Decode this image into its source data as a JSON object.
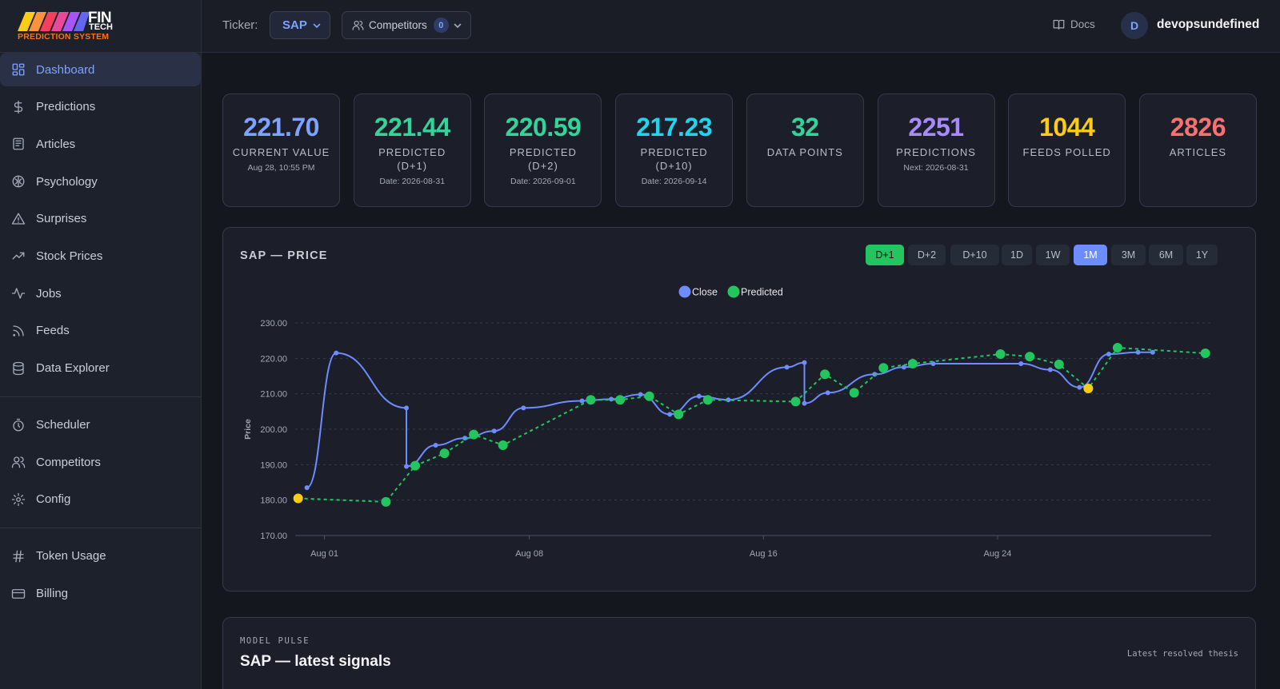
{
  "brand": {
    "line1": "FIN",
    "line2": "TECH",
    "subtitle": "PREDICTION SYSTEM"
  },
  "sidebar": {
    "groups": [
      [
        {
          "label": "Dashboard",
          "icon": "dashboard-icon",
          "active": true
        },
        {
          "label": "Predictions",
          "icon": "dollar-icon"
        },
        {
          "label": "Articles",
          "icon": "newspaper-icon"
        },
        {
          "label": "Psychology",
          "icon": "brain-icon"
        },
        {
          "label": "Surprises",
          "icon": "warning-icon"
        },
        {
          "label": "Stock Prices",
          "icon": "trending-up-icon"
        },
        {
          "label": "Jobs",
          "icon": "activity-icon"
        },
        {
          "label": "Feeds",
          "icon": "rss-icon"
        },
        {
          "label": "Data Explorer",
          "icon": "database-icon"
        }
      ],
      [
        {
          "label": "Scheduler",
          "icon": "timer-icon"
        },
        {
          "label": "Competitors",
          "icon": "users-icon"
        },
        {
          "label": "Config",
          "icon": "gear-icon"
        }
      ],
      [
        {
          "label": "Token Usage",
          "icon": "hash-icon"
        },
        {
          "label": "Billing",
          "icon": "credit-card-icon"
        }
      ]
    ]
  },
  "topbar": {
    "ticker_label": "Ticker:",
    "ticker_value": "SAP",
    "competitors_label": "Competitors",
    "competitors_count": "0",
    "docs_label": "Docs",
    "avatar_initial": "D",
    "username": "devopsundefined"
  },
  "stats": [
    {
      "value": "221.70",
      "label": "CURRENT VALUE",
      "sub": "Aug 28, 10:55 PM",
      "color": "#7da2ff"
    },
    {
      "value": "221.44",
      "label": "PREDICTED (D+1)",
      "sub": "Date: 2026-08-31",
      "color": "#34d399"
    },
    {
      "value": "220.59",
      "label": "PREDICTED (D+2)",
      "sub": "Date: 2026-09-01",
      "color": "#34d399"
    },
    {
      "value": "217.23",
      "label": "PREDICTED (D+10)",
      "sub": "Date: 2026-09-14",
      "color": "#22d3ee"
    },
    {
      "value": "32",
      "label": "DATA POINTS",
      "sub": "",
      "color": "#34d399"
    },
    {
      "value": "2251",
      "label": "PREDICTIONS",
      "sub": "Next: 2026-08-31",
      "color": "#a78bfa"
    },
    {
      "value": "1044",
      "label": "FEEDS POLLED",
      "sub": "",
      "color": "#facc15"
    },
    {
      "value": "2826",
      "label": "ARTICLES",
      "sub": "",
      "color": "#f87171"
    }
  ],
  "chart_panel": {
    "title": "SAP — PRICE",
    "ranges": [
      {
        "label": "D+1",
        "state": "green"
      },
      {
        "label": "D+2",
        "state": ""
      },
      {
        "label": "D+10",
        "state": ""
      },
      {
        "label": "1D",
        "state": ""
      },
      {
        "label": "1W",
        "state": ""
      },
      {
        "label": "1M",
        "state": "blue"
      },
      {
        "label": "3M",
        "state": ""
      },
      {
        "label": "6M",
        "state": ""
      },
      {
        "label": "1Y",
        "state": ""
      }
    ]
  },
  "chart_data": {
    "type": "line",
    "ylabel": "Price",
    "xlabel": "",
    "ylim": [
      170,
      230
    ],
    "yticks": [
      "230.00",
      "220.00",
      "210.00",
      "200.00",
      "190.00",
      "180.00",
      "170.00"
    ],
    "xticks": [
      {
        "label": "Aug 01",
        "day": 1
      },
      {
        "label": "Aug 08",
        "day": 8
      },
      {
        "label": "Aug 16",
        "day": 16
      },
      {
        "label": "Aug 24",
        "day": 24
      }
    ],
    "grid": true,
    "legend": "top-center",
    "series": [
      {
        "name": "Close",
        "color": "#6d8cff",
        "points": [
          [
            0.4,
            183.5
          ],
          [
            1.4,
            221.5
          ],
          [
            3.8,
            206
          ],
          [
            3.8,
            189.5
          ],
          [
            4.8,
            195.5
          ],
          [
            5.8,
            197.5
          ],
          [
            6.8,
            199.5
          ],
          [
            7.8,
            206
          ],
          [
            9.8,
            208
          ],
          [
            10.8,
            208.5
          ],
          [
            11.8,
            209.8
          ],
          [
            12.8,
            204.2
          ],
          [
            13.8,
            209.3
          ],
          [
            14.8,
            208.3
          ],
          [
            16.8,
            217.5
          ],
          [
            17.4,
            218.8
          ],
          [
            17.4,
            207.3
          ],
          [
            18.2,
            210.3
          ],
          [
            19.8,
            215.5
          ],
          [
            20.8,
            217.5
          ],
          [
            21.8,
            218.5
          ],
          [
            24.8,
            218.5
          ],
          [
            25.8,
            216.8
          ],
          [
            26.8,
            211.8
          ],
          [
            27.8,
            221.2
          ],
          [
            28.8,
            221.7
          ],
          [
            29.3,
            221.7
          ]
        ]
      },
      {
        "name": "Predicted",
        "color": "#22c55e",
        "points": [
          [
            0.1,
            180.5
          ],
          [
            3.1,
            179.5
          ],
          [
            4.1,
            189.7
          ],
          [
            5.1,
            193.2
          ],
          [
            6.1,
            198.5
          ],
          [
            7.1,
            195.5
          ],
          [
            10.1,
            208.3
          ],
          [
            11.1,
            208.3
          ],
          [
            12.1,
            209.3
          ],
          [
            13.1,
            204.2
          ],
          [
            14.1,
            208.3
          ],
          [
            17.1,
            207.8
          ],
          [
            18.1,
            215.5
          ],
          [
            19.1,
            210.3
          ],
          [
            20.1,
            217.3
          ],
          [
            21.1,
            218.5
          ],
          [
            24.1,
            221.2
          ],
          [
            25.1,
            220.5
          ],
          [
            26.1,
            218.3
          ],
          [
            27.1,
            211.5
          ],
          [
            28.1,
            223
          ],
          [
            31.1,
            221.44
          ]
        ],
        "flagged_points": [
          0,
          19
        ]
      }
    ]
  },
  "pulse": {
    "kicker": "MODEL PULSE",
    "title": "SAP — latest signals",
    "right": "Latest resolved thesis"
  }
}
